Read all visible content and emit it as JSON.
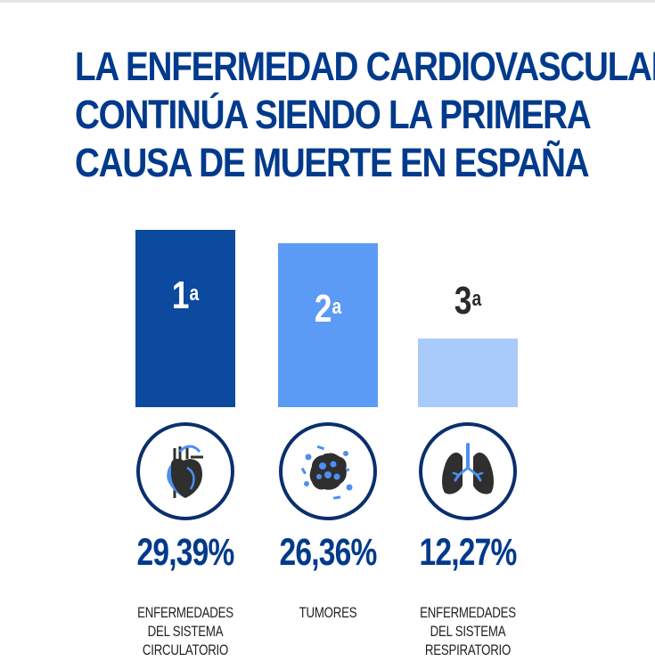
{
  "title": {
    "line1": "LA ENFERMEDAD CARDIOVASCULAR",
    "line2": "CONTINÚA SIENDO LA PRIMERA",
    "line3": "CAUSA DE MUERTE EN ESPAÑA"
  },
  "colors": {
    "title": "#003a8c",
    "bar1": "#0b4a9e",
    "bar2": "#5b9bf5",
    "bar3": "#a9cbfb",
    "icon_ring": "#0b2f6e",
    "icon_fill": "#2f2f2f",
    "icon_accent": "#4d8ff0"
  },
  "chart_data": {
    "type": "bar",
    "categories": [
      "ENFERMEDADES DEL SISTEMA CIRCULATORIO",
      "TUMORES",
      "ENFERMEDADES DEL SISTEMA RESPIRATORIO"
    ],
    "values": [
      29.39,
      26.36,
      12.27
    ],
    "value_labels": [
      "29,39%",
      "26,36%",
      "12,27%"
    ],
    "ranks": [
      "1",
      "2",
      "3"
    ],
    "rank_suffix": "a",
    "icons": [
      "heart-icon",
      "tumor-cell-icon",
      "lungs-icon"
    ],
    "ylim": [
      0,
      29.39
    ],
    "grid": false,
    "legend": "none"
  }
}
